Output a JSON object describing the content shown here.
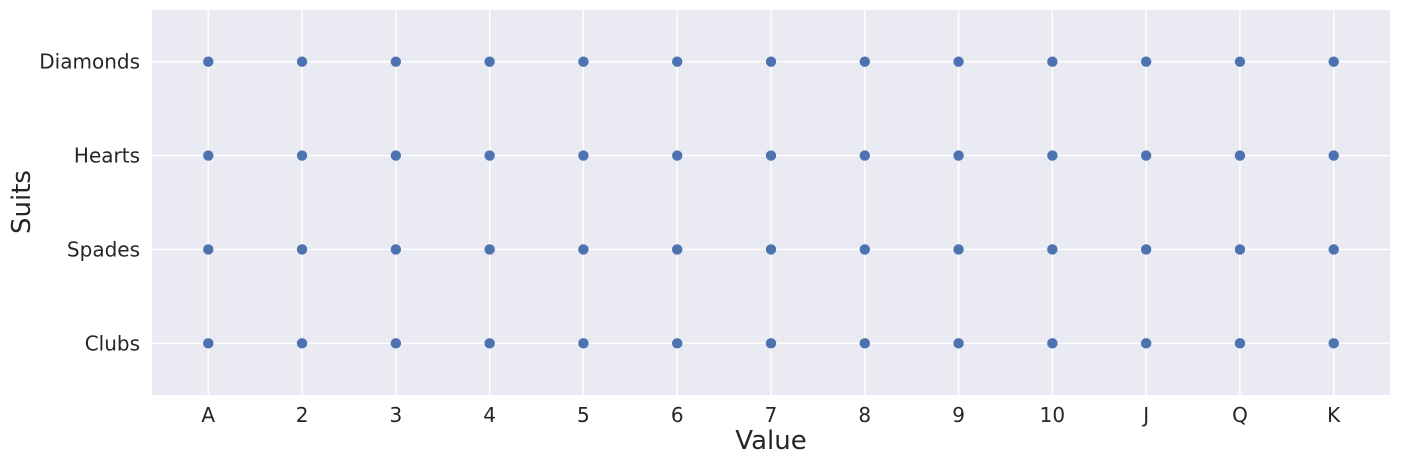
{
  "chart_data": {
    "type": "scatter",
    "title": "",
    "xlabel": "Value",
    "ylabel": "Suits",
    "x_categories": [
      "A",
      "2",
      "3",
      "4",
      "5",
      "6",
      "7",
      "8",
      "9",
      "10",
      "J",
      "Q",
      "K"
    ],
    "y_categories": [
      "Clubs",
      "Spades",
      "Hearts",
      "Diamonds"
    ],
    "points": [
      {
        "x": "A",
        "y": "Diamonds"
      },
      {
        "x": "2",
        "y": "Diamonds"
      },
      {
        "x": "3",
        "y": "Diamonds"
      },
      {
        "x": "4",
        "y": "Diamonds"
      },
      {
        "x": "5",
        "y": "Diamonds"
      },
      {
        "x": "6",
        "y": "Diamonds"
      },
      {
        "x": "7",
        "y": "Diamonds"
      },
      {
        "x": "8",
        "y": "Diamonds"
      },
      {
        "x": "9",
        "y": "Diamonds"
      },
      {
        "x": "10",
        "y": "Diamonds"
      },
      {
        "x": "J",
        "y": "Diamonds"
      },
      {
        "x": "Q",
        "y": "Diamonds"
      },
      {
        "x": "K",
        "y": "Diamonds"
      },
      {
        "x": "A",
        "y": "Hearts"
      },
      {
        "x": "2",
        "y": "Hearts"
      },
      {
        "x": "3",
        "y": "Hearts"
      },
      {
        "x": "4",
        "y": "Hearts"
      },
      {
        "x": "5",
        "y": "Hearts"
      },
      {
        "x": "6",
        "y": "Hearts"
      },
      {
        "x": "7",
        "y": "Hearts"
      },
      {
        "x": "8",
        "y": "Hearts"
      },
      {
        "x": "9",
        "y": "Hearts"
      },
      {
        "x": "10",
        "y": "Hearts"
      },
      {
        "x": "J",
        "y": "Hearts"
      },
      {
        "x": "Q",
        "y": "Hearts"
      },
      {
        "x": "K",
        "y": "Hearts"
      },
      {
        "x": "A",
        "y": "Spades"
      },
      {
        "x": "2",
        "y": "Spades"
      },
      {
        "x": "3",
        "y": "Spades"
      },
      {
        "x": "4",
        "y": "Spades"
      },
      {
        "x": "5",
        "y": "Spades"
      },
      {
        "x": "6",
        "y": "Spades"
      },
      {
        "x": "7",
        "y": "Spades"
      },
      {
        "x": "8",
        "y": "Spades"
      },
      {
        "x": "9",
        "y": "Spades"
      },
      {
        "x": "10",
        "y": "Spades"
      },
      {
        "x": "J",
        "y": "Spades"
      },
      {
        "x": "Q",
        "y": "Spades"
      },
      {
        "x": "K",
        "y": "Spades"
      },
      {
        "x": "A",
        "y": "Clubs"
      },
      {
        "x": "2",
        "y": "Clubs"
      },
      {
        "x": "3",
        "y": "Clubs"
      },
      {
        "x": "4",
        "y": "Clubs"
      },
      {
        "x": "5",
        "y": "Clubs"
      },
      {
        "x": "6",
        "y": "Clubs"
      },
      {
        "x": "7",
        "y": "Clubs"
      },
      {
        "x": "8",
        "y": "Clubs"
      },
      {
        "x": "9",
        "y": "Clubs"
      },
      {
        "x": "10",
        "y": "Clubs"
      },
      {
        "x": "J",
        "y": "Clubs"
      },
      {
        "x": "Q",
        "y": "Clubs"
      },
      {
        "x": "K",
        "y": "Clubs"
      }
    ],
    "grid": true,
    "legend": "none",
    "colors": {
      "marker": "#4c72b0",
      "background": "#eaeaf2",
      "grid": "#ffffff",
      "text": "#262626"
    }
  }
}
